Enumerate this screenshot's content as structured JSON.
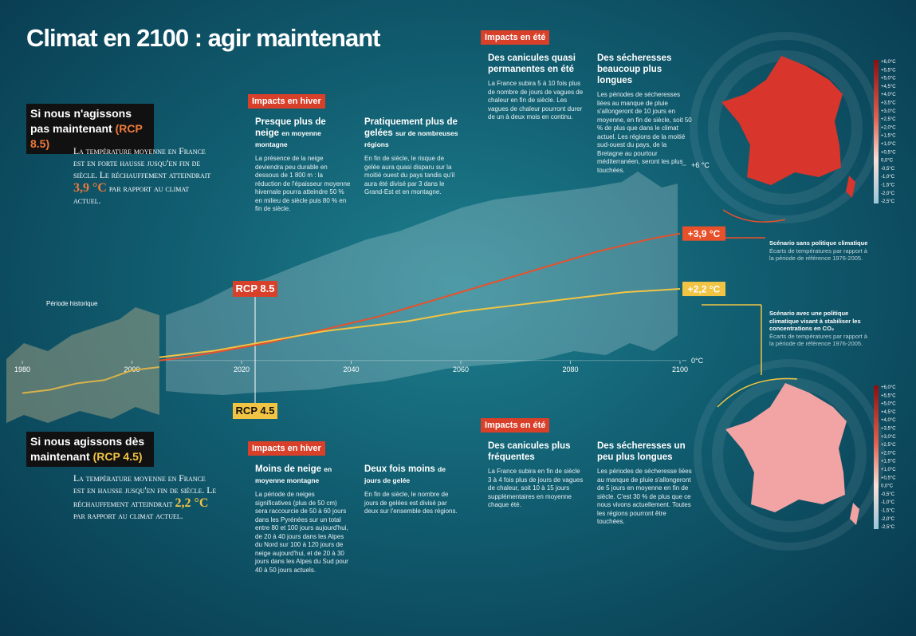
{
  "title": "Climat en 2100 : agir maintenant",
  "scenario_high": {
    "heading": "Si nous n'agissons pas maintenant",
    "tag": "(RCP 8.5)",
    "body_before": "La température moyenne en France est en forte hausse jusqu'en fin de siècle. Le réchauffement atteindrait",
    "highlight": "3,9 °C",
    "body_after": "par rapport au climat actuel."
  },
  "scenario_low": {
    "heading": "Si nous agissons dès maintenant",
    "tag": "(RCP 4.5)",
    "body_before": "La température moyenne en France est en hausse jusqu'en fin de siècle. Le réchauffement atteindrait",
    "highlight": "2,2 °C",
    "body_after": "par rapport au climat actuel."
  },
  "panels": [
    {
      "tag": "Impacts en hiver",
      "columns": [
        {
          "heading": "Presque plus de neige",
          "sub": "en moyenne montagne",
          "body": "La présence de la neige deviendra peu durable en dessous de 1 800 m : la réduction de l'épaisseur moyenne hivernale pourra atteindre 50 % en milieu de siècle puis 80 % en fin de siècle."
        },
        {
          "heading": "Pratiquement plus de gelées",
          "sub": "sur de nombreuses régions",
          "body": "En fin de siècle, le risque de gelée aura quasi disparu sur la moitié ouest du pays tandis qu'il aura été divisé par 3 dans le Grand-Est et en montagne."
        }
      ]
    },
    {
      "tag": "Impacts en été",
      "columns": [
        {
          "heading": "Des canicules quasi permanentes en été",
          "body": "La France subira 5 à 10 fois plus de nombre de jours de vagues de chaleur en fin de siècle. Les vagues de chaleur pourront durer de un à deux mois en continu."
        },
        {
          "heading": "Des sécheresses beaucoup plus longues",
          "body": "Les périodes de sécheresses liées au manque de pluie s'allongeront de 10 jours en moyenne, en fin de siècle, soit 50 % de plus que dans le climat actuel. Les régions de la moitié sud-ouest du pays, de la Bretagne au pourtour méditerranéen, seront les plus touchées."
        }
      ]
    },
    {
      "tag": "Impacts en hiver",
      "columns": [
        {
          "heading": "Moins de neige",
          "sub": "en moyenne montagne",
          "body": "La période de neiges significatives (plus de 50 cm) sera raccourcie de 50 à 60 jours dans les Pyrénées sur un total entre 80 et 100 jours aujourd'hui, de 20 à 40 jours dans les Alpes du Nord sur 100 à 120 jours de neige aujourd'hui, et de 20 à 30 jours dans les Alpes du Sud pour 40 à 50 jours actuels."
        },
        {
          "heading": "Deux fois moins",
          "sub": "de jours de gelée",
          "body": "En fin de siècle, le nombre de jours de gelées est divisé par deux sur l'ensemble des régions."
        }
      ]
    },
    {
      "tag": "Impacts en été",
      "columns": [
        {
          "heading": "Des canicules plus fréquentes",
          "body": "La France subira en fin de siècle 3 à 4 fois plus de jours de vagues de chaleur, soit 10 à 15 jours supplémentaires en moyenne chaque été."
        },
        {
          "heading": "Des sécheresses un peu plus longues",
          "body": "Les périodes de sécheresse liées au manque de pluie s'allongeront de 5 jours en moyenne en fin de siècle. C'est 30 % de plus que ce nous vivons actuellement. Toutes les régions pourront être touchées."
        }
      ]
    }
  ],
  "maps": [
    {
      "caption": "Scénario sans politique climatique",
      "note": "Écarts de températures par rapport à la période de référence 1976-2005.",
      "color": "#d8352c"
    },
    {
      "caption": "Scénario avec une politique climatique visant à stabiliser les concentrations en CO₂",
      "note": "Écarts de températures par rapport à la période de référence 1976-2005.",
      "color": "#f2a3a3"
    }
  ],
  "colorbar_labels": [
    "+6,0°C",
    "+5,5°C",
    "+5,0°C",
    "+4,5°C",
    "+4,0°C",
    "+3,5°C",
    "+3,0°C",
    "+2,5°C",
    "+2,0°C",
    "+1,5°C",
    "+1,0°C",
    "+0,5°C",
    "0,0°C",
    "-0,5°C",
    "-1,0°C",
    "-1,5°C",
    "-2,0°C",
    "-2,5°C"
  ],
  "chart_data": {
    "type": "line",
    "annotation": "Période historique",
    "xticks": [
      1980,
      2000,
      2020,
      2040,
      2060,
      2080,
      2100
    ],
    "xlim": [
      1980,
      2100
    ],
    "ylim": [
      -1.5,
      6
    ],
    "yticks": [
      {
        "value": 6,
        "label": "+6 °C"
      },
      {
        "value": 0,
        "label": "0°C"
      }
    ],
    "series": [
      {
        "name": "Période historique",
        "color": "#d8b24a",
        "x": [
          1980,
          1985,
          1990,
          1995,
          2000,
          2005
        ],
        "values": [
          -1.0,
          -0.9,
          -0.7,
          -0.6,
          -0.3,
          -0.2
        ]
      },
      {
        "name": "RCP 8.5",
        "color": "#e8502a",
        "x": [
          2005,
          2010,
          2015,
          2020,
          2025,
          2030,
          2035,
          2040,
          2045,
          2050,
          2055,
          2060,
          2065,
          2070,
          2075,
          2080,
          2085,
          2090,
          2095,
          2100
        ],
        "values": [
          0,
          0.1,
          0.25,
          0.4,
          0.55,
          0.75,
          0.95,
          1.15,
          1.35,
          1.6,
          1.85,
          2.1,
          2.35,
          2.6,
          2.85,
          3.1,
          3.35,
          3.55,
          3.75,
          3.9
        ],
        "value_labels": {
          "19": "+3,9 °C"
        }
      },
      {
        "name": "RCP 4.5",
        "color": "#f2c443",
        "x": [
          2005,
          2010,
          2015,
          2020,
          2025,
          2030,
          2035,
          2040,
          2045,
          2050,
          2055,
          2060,
          2065,
          2070,
          2075,
          2080,
          2085,
          2090,
          2095,
          2100
        ],
        "values": [
          0.1,
          0.2,
          0.3,
          0.45,
          0.6,
          0.75,
          0.9,
          1.0,
          1.1,
          1.2,
          1.35,
          1.5,
          1.6,
          1.7,
          1.8,
          1.9,
          2.0,
          2.1,
          2.15,
          2.2
        ],
        "value_labels": {
          "19": "+2,2 °C"
        }
      }
    ]
  }
}
